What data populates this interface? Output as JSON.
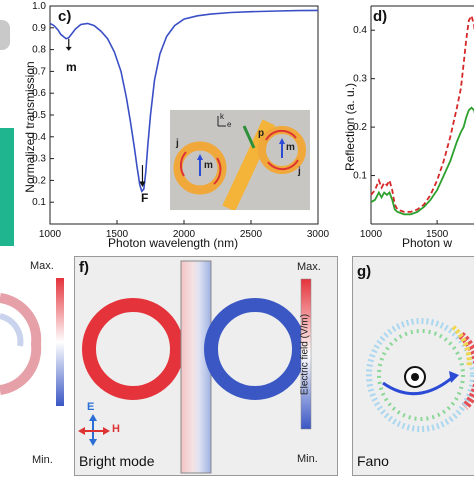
{
  "chart_data": [
    {
      "type": "line",
      "panel": "c)",
      "xlabel": "Photon wavelength (nm)",
      "ylabel": "Normalized transmission",
      "xlim": [
        1000,
        3000
      ],
      "ylim": [
        0.0,
        1.0
      ],
      "xticks": [
        "1000",
        "1500",
        "2000",
        "2500",
        "3000"
      ],
      "yticks": [
        "0.1",
        "0.2",
        "0.3",
        "0.4",
        "0.5",
        "0.6",
        "0.7",
        "0.8",
        "0.9",
        "1.0"
      ],
      "series": [
        {
          "color": "#3a4fc6",
          "x": [
            1000,
            1030,
            1060,
            1080,
            1100,
            1120,
            1140,
            1160,
            1190,
            1230,
            1280,
            1330,
            1380,
            1430,
            1480,
            1530,
            1570,
            1600,
            1630,
            1650,
            1670,
            1685,
            1700,
            1715,
            1730,
            1750,
            1780,
            1820,
            1870,
            1930,
            2000,
            2100,
            2200,
            2350,
            2500,
            2700,
            2850,
            3000
          ],
          "y": [
            0.92,
            0.91,
            0.89,
            0.87,
            0.86,
            0.85,
            0.855,
            0.87,
            0.895,
            0.915,
            0.92,
            0.91,
            0.885,
            0.85,
            0.79,
            0.7,
            0.58,
            0.47,
            0.35,
            0.26,
            0.18,
            0.15,
            0.16,
            0.24,
            0.36,
            0.5,
            0.66,
            0.78,
            0.86,
            0.91,
            0.94,
            0.955,
            0.963,
            0.97,
            0.974,
            0.977,
            0.979,
            0.98
          ]
        }
      ],
      "annotations": [
        "m",
        "F"
      ],
      "inset_labels": {
        "j_left": "j",
        "j_right": "j",
        "m_left": "m",
        "m_right": "m",
        "p": "p",
        "k": "k",
        "e": "e"
      }
    },
    {
      "type": "line",
      "panel": "d)",
      "xlabel": "Photon w",
      "ylabel": "Reflection (a. u.)",
      "yticks": [
        "0.1",
        "0.2",
        "0.3",
        "0.4"
      ],
      "xticks": [
        "1000",
        "1500"
      ],
      "ylim": [
        0,
        0.45
      ],
      "xlim": [
        1000,
        1900
      ],
      "series": [
        {
          "color": "#d62728",
          "style": "dashed",
          "x": [
            1000,
            1030,
            1060,
            1080,
            1100,
            1120,
            1140,
            1160,
            1180,
            1200,
            1250,
            1300,
            1350,
            1400,
            1450,
            1500,
            1550,
            1600,
            1650,
            1680,
            1700,
            1720,
            1740,
            1760,
            1780,
            1800,
            1820,
            1860,
            1900
          ],
          "y": [
            0.06,
            0.07,
            0.09,
            0.075,
            0.085,
            0.08,
            0.09,
            0.07,
            0.04,
            0.03,
            0.025,
            0.025,
            0.03,
            0.04,
            0.06,
            0.09,
            0.13,
            0.18,
            0.24,
            0.28,
            0.33,
            0.38,
            0.42,
            0.43,
            0.41,
            0.36,
            0.28,
            0.18,
            0.12
          ]
        },
        {
          "color": "#2ca02c",
          "x": [
            1000,
            1030,
            1060,
            1080,
            1100,
            1120,
            1140,
            1160,
            1180,
            1200,
            1250,
            1300,
            1350,
            1400,
            1450,
            1500,
            1550,
            1600,
            1650,
            1680,
            1700,
            1720,
            1740,
            1760,
            1780,
            1800,
            1820,
            1860,
            1900
          ],
          "y": [
            0.045,
            0.05,
            0.065,
            0.055,
            0.065,
            0.06,
            0.065,
            0.05,
            0.03,
            0.025,
            0.02,
            0.02,
            0.025,
            0.035,
            0.05,
            0.07,
            0.1,
            0.13,
            0.17,
            0.19,
            0.2,
            0.22,
            0.235,
            0.24,
            0.235,
            0.21,
            0.17,
            0.12,
            0.09
          ]
        }
      ]
    }
  ],
  "panels": {
    "f_label": "f)",
    "g_label": "g)",
    "colorbar_f": {
      "max": "Max.",
      "min": "Min.",
      "title": "Electric field (V/m)"
    },
    "colorbar_e": {
      "max": "Max.",
      "min": "Min."
    },
    "legend_f": {
      "e": "E",
      "h": "H"
    },
    "caption_f": "Bright mode",
    "caption_g": "Fano"
  },
  "colors": {
    "axis": "#222222",
    "ring_gold": "#f1a83a",
    "bar_gold": "#f4b43a",
    "field_red": "#e4333b",
    "field_blue": "#3a57c4",
    "teal": "#1fb58f"
  }
}
